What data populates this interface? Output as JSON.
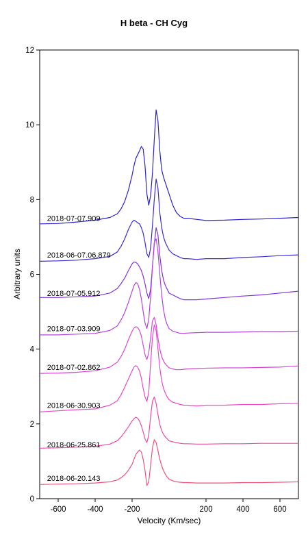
{
  "chart_data": {
    "type": "line",
    "title": "H beta - CH Cyg",
    "xlabel": "Velocity (Km/sec)",
    "ylabel": "Arbitrary units",
    "xlim": [
      -700,
      700
    ],
    "ylim": [
      0,
      12
    ],
    "xticks": [
      -600,
      -400,
      -200,
      200,
      400,
      600
    ],
    "yticks": [
      0,
      2,
      4,
      6,
      8,
      10,
      12
    ],
    "grid": false,
    "series": [
      {
        "name": "2018-07-07.909",
        "color": "#2a22cc",
        "label_at": [
          -660,
          7.5
        ],
        "x": [
          -700,
          -600,
          -500,
          -400,
          -320,
          -280,
          -260,
          -240,
          -220,
          -200,
          -190,
          -180,
          -170,
          -160,
          -150,
          -140,
          -130,
          -120,
          -110,
          -100,
          -90,
          -80,
          -70,
          -60,
          -50,
          -40,
          -30,
          -20,
          -10,
          0,
          10,
          20,
          40,
          60,
          80,
          100,
          150,
          200,
          300,
          400,
          500,
          600,
          700
        ],
        "y": [
          7.35,
          7.36,
          7.4,
          7.45,
          7.52,
          7.62,
          7.75,
          7.95,
          8.25,
          8.65,
          8.9,
          9.1,
          9.2,
          9.3,
          9.42,
          9.35,
          8.9,
          8.15,
          7.85,
          8.1,
          8.7,
          9.6,
          10.4,
          10.1,
          9.3,
          8.8,
          8.6,
          8.45,
          8.3,
          8.15,
          8.0,
          7.85,
          7.65,
          7.55,
          7.5,
          7.5,
          7.47,
          7.44,
          7.45,
          7.47,
          7.48,
          7.5,
          7.52
        ]
      },
      {
        "name": "2018-06-07.06.879",
        "color": "#3a2ad6",
        "label_at": [
          -660,
          6.52
        ],
        "x": [
          -700,
          -600,
          -500,
          -400,
          -320,
          -280,
          -260,
          -240,
          -220,
          -200,
          -190,
          -180,
          -170,
          -160,
          -150,
          -140,
          -130,
          -120,
          -110,
          -100,
          -90,
          -80,
          -70,
          -60,
          -50,
          -40,
          -30,
          -20,
          -10,
          0,
          20,
          40,
          60,
          80,
          100,
          150,
          200,
          300,
          400,
          500,
          600,
          700
        ],
        "y": [
          6.35,
          6.36,
          6.38,
          6.42,
          6.48,
          6.6,
          6.75,
          6.95,
          7.2,
          7.4,
          7.45,
          7.42,
          7.38,
          7.35,
          7.25,
          7.1,
          6.85,
          6.55,
          6.45,
          6.7,
          7.3,
          8.0,
          8.55,
          8.3,
          7.65,
          7.25,
          7.0,
          6.85,
          6.75,
          6.65,
          6.55,
          6.5,
          6.45,
          6.42,
          6.42,
          6.4,
          6.42,
          6.42,
          6.45,
          6.47,
          6.5,
          6.52
        ]
      },
      {
        "name": "2018-07-05.912",
        "color": "#7f35d8",
        "label_at": [
          -660,
          5.5
        ],
        "x": [
          -700,
          -600,
          -500,
          -400,
          -320,
          -280,
          -260,
          -240,
          -220,
          -200,
          -190,
          -180,
          -170,
          -160,
          -150,
          -140,
          -130,
          -120,
          -110,
          -100,
          -90,
          -80,
          -70,
          -60,
          -50,
          -40,
          -30,
          -20,
          -10,
          0,
          20,
          40,
          60,
          80,
          100,
          150,
          200,
          300,
          400,
          500,
          600,
          700
        ],
        "y": [
          5.38,
          5.38,
          5.4,
          5.42,
          5.5,
          5.62,
          5.75,
          5.9,
          6.1,
          6.28,
          6.33,
          6.32,
          6.28,
          6.2,
          6.1,
          5.95,
          5.75,
          5.5,
          5.35,
          5.6,
          6.2,
          6.8,
          7.25,
          7.05,
          6.5,
          6.1,
          5.85,
          5.7,
          5.6,
          5.5,
          5.45,
          5.4,
          5.35,
          5.32,
          5.32,
          5.32,
          5.34,
          5.38,
          5.42,
          5.45,
          5.5,
          5.55
        ]
      },
      {
        "name": "2018-07-03.909",
        "color": "#b442e0",
        "label_at": [
          -660,
          4.55
        ],
        "x": [
          -700,
          -600,
          -500,
          -400,
          -320,
          -280,
          -260,
          -240,
          -220,
          -200,
          -190,
          -180,
          -170,
          -160,
          -150,
          -140,
          -130,
          -120,
          -110,
          -100,
          -90,
          -80,
          -70,
          -60,
          -50,
          -40,
          -30,
          -20,
          -10,
          0,
          20,
          40,
          60,
          80,
          100,
          150,
          200,
          300,
          400,
          500,
          600,
          700
        ],
        "y": [
          4.38,
          4.38,
          4.4,
          4.42,
          4.5,
          4.62,
          4.78,
          4.98,
          5.25,
          5.55,
          5.7,
          5.78,
          5.75,
          5.6,
          5.35,
          5.0,
          4.7,
          4.55,
          4.8,
          5.4,
          6.2,
          6.85,
          6.95,
          6.6,
          6.0,
          5.45,
          5.05,
          4.8,
          4.65,
          4.55,
          4.48,
          4.45,
          4.42,
          4.42,
          4.43,
          4.44,
          4.45,
          4.45,
          4.46,
          4.47,
          4.47,
          4.48
        ]
      },
      {
        "name": "2018-07-02.862",
        "color": "#d847d8",
        "label_at": [
          -660,
          3.52
        ],
        "x": [
          -700,
          -600,
          -500,
          -400,
          -320,
          -280,
          -260,
          -240,
          -220,
          -200,
          -190,
          -180,
          -170,
          -160,
          -150,
          -140,
          -130,
          -120,
          -110,
          -100,
          -90,
          -80,
          -70,
          -60,
          -50,
          -40,
          -30,
          -20,
          -10,
          0,
          20,
          40,
          60,
          80,
          100,
          150,
          200,
          300,
          400,
          500,
          600,
          700
        ],
        "y": [
          3.35,
          3.36,
          3.38,
          3.42,
          3.52,
          3.65,
          3.8,
          4.0,
          4.25,
          4.48,
          4.56,
          4.6,
          4.58,
          4.5,
          4.35,
          4.1,
          3.85,
          3.72,
          3.9,
          4.3,
          4.75,
          4.85,
          4.65,
          4.3,
          4.0,
          3.8,
          3.68,
          3.6,
          3.55,
          3.5,
          3.47,
          3.45,
          3.45,
          3.46,
          3.47,
          3.48,
          3.49,
          3.5,
          3.5,
          3.51,
          3.52,
          3.55
        ]
      },
      {
        "name": "2018-06-30.903",
        "color": "#e84ac6",
        "label_at": [
          -660,
          2.5
        ],
        "x": [
          -700,
          -600,
          -500,
          -400,
          -320,
          -280,
          -260,
          -240,
          -220,
          -200,
          -190,
          -180,
          -170,
          -160,
          -150,
          -140,
          -130,
          -120,
          -110,
          -100,
          -90,
          -80,
          -70,
          -60,
          -50,
          -40,
          -30,
          -20,
          -10,
          0,
          20,
          40,
          60,
          80,
          100,
          150,
          200,
          300,
          400,
          500,
          600,
          700
        ],
        "y": [
          2.32,
          2.35,
          2.38,
          2.4,
          2.5,
          2.62,
          2.78,
          2.98,
          3.2,
          3.42,
          3.52,
          3.56,
          3.52,
          3.42,
          3.22,
          2.95,
          2.72,
          2.6,
          2.85,
          3.6,
          4.3,
          4.65,
          4.5,
          4.0,
          3.5,
          3.15,
          2.95,
          2.82,
          2.72,
          2.65,
          2.58,
          2.55,
          2.52,
          2.5,
          2.5,
          2.48,
          2.5,
          2.5,
          2.52,
          2.52,
          2.54,
          2.55
        ]
      },
      {
        "name": "2018-06-25.861",
        "color": "#f04aa6",
        "label_at": [
          -660,
          1.45
        ],
        "x": [
          -700,
          -600,
          -500,
          -400,
          -320,
          -280,
          -260,
          -240,
          -220,
          -200,
          -190,
          -180,
          -170,
          -160,
          -150,
          -140,
          -130,
          -120,
          -110,
          -100,
          -90,
          -80,
          -70,
          -60,
          -50,
          -40,
          -30,
          -20,
          -10,
          0,
          20,
          40,
          60,
          80,
          100,
          150,
          200,
          300,
          400,
          500,
          600,
          700
        ],
        "y": [
          1.35,
          1.36,
          1.38,
          1.4,
          1.46,
          1.55,
          1.65,
          1.78,
          1.92,
          2.08,
          2.14,
          2.18,
          2.15,
          2.08,
          1.95,
          1.78,
          1.6,
          1.5,
          1.7,
          2.2,
          2.6,
          2.72,
          2.55,
          2.25,
          1.98,
          1.82,
          1.72,
          1.65,
          1.6,
          1.55,
          1.52,
          1.5,
          1.48,
          1.47,
          1.47,
          1.46,
          1.46,
          1.47,
          1.47,
          1.48,
          1.48,
          1.48
        ]
      },
      {
        "name": "2018-06-20.143",
        "color": "#f0507a",
        "label_at": [
          -660,
          0.55
        ],
        "x": [
          -700,
          -600,
          -500,
          -400,
          -320,
          -280,
          -260,
          -240,
          -220,
          -200,
          -190,
          -180,
          -170,
          -160,
          -150,
          -140,
          -130,
          -120,
          -110,
          -100,
          -90,
          -80,
          -70,
          -60,
          -50,
          -40,
          -30,
          -20,
          -10,
          0,
          20,
          40,
          60,
          80,
          100,
          150,
          200,
          300,
          400,
          500,
          600,
          700
        ],
        "y": [
          0.38,
          0.39,
          0.4,
          0.42,
          0.45,
          0.5,
          0.56,
          0.64,
          0.76,
          0.92,
          1.05,
          1.18,
          1.25,
          1.3,
          1.25,
          1.05,
          0.75,
          0.35,
          0.45,
          0.9,
          1.35,
          1.58,
          1.5,
          1.28,
          1.05,
          0.88,
          0.75,
          0.65,
          0.58,
          0.52,
          0.48,
          0.45,
          0.44,
          0.43,
          0.43,
          0.42,
          0.42,
          0.42,
          0.43,
          0.43,
          0.44,
          0.45
        ]
      }
    ]
  }
}
